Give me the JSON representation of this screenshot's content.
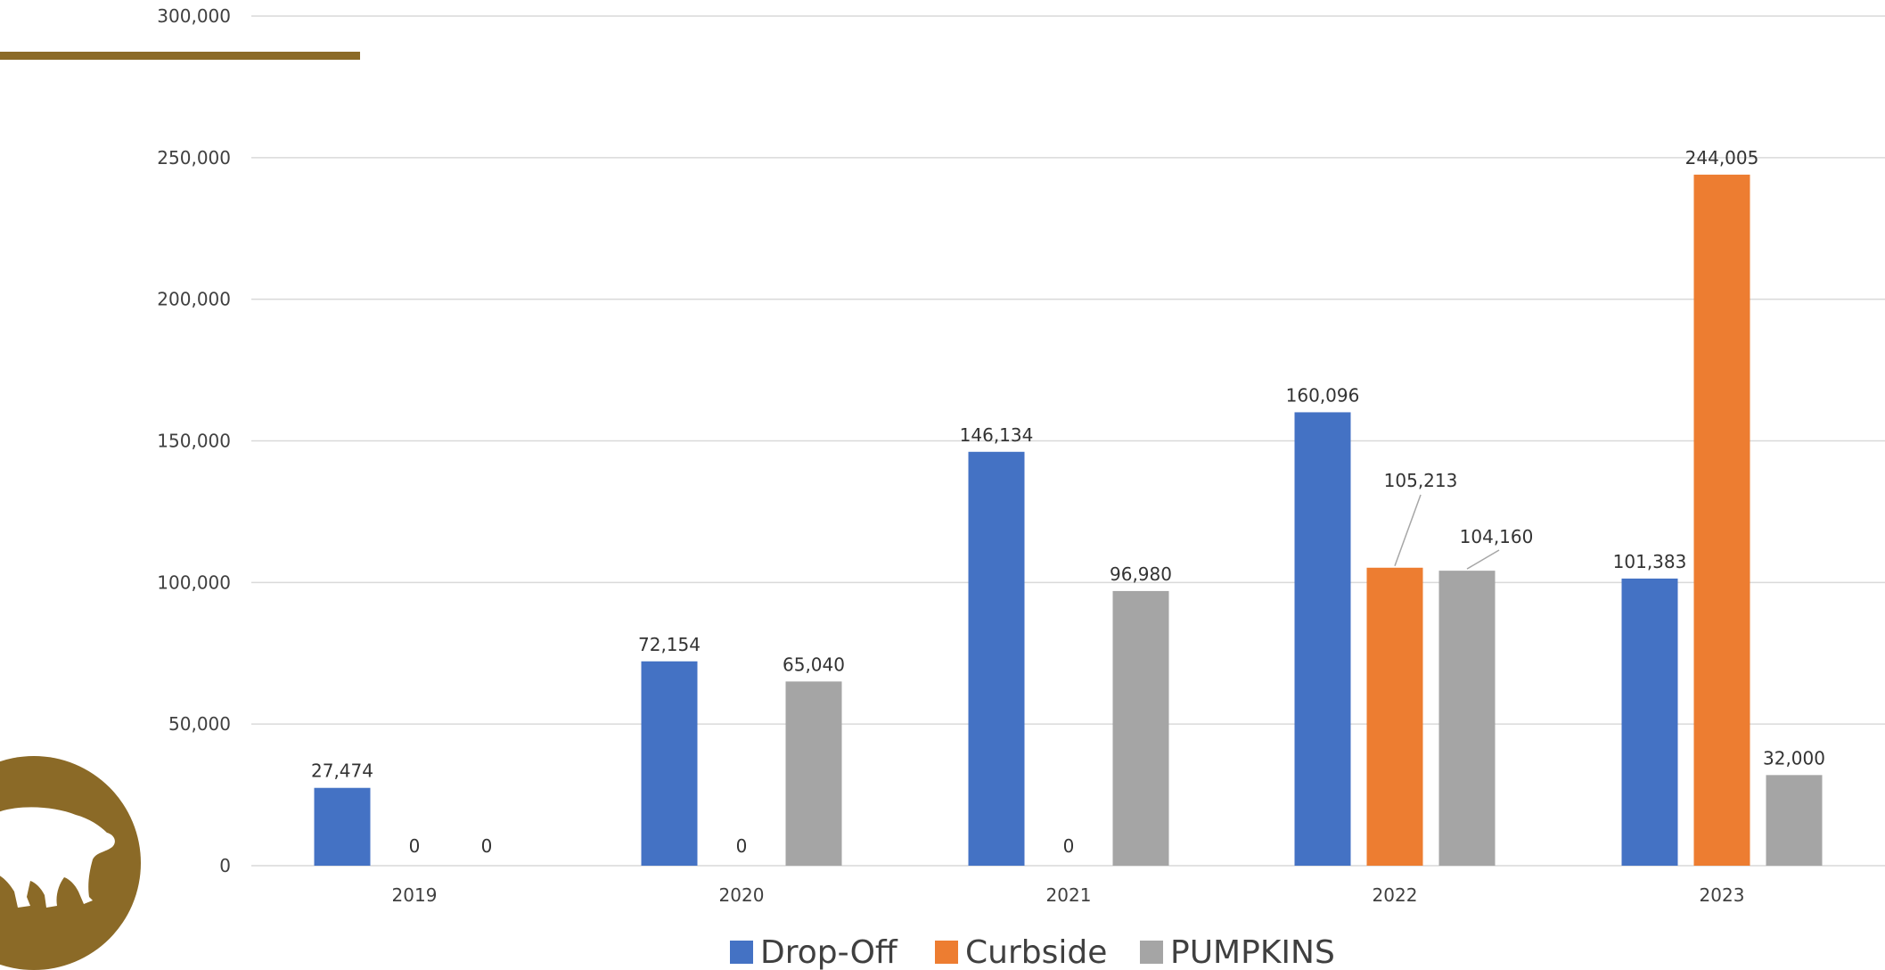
{
  "page": {
    "accent_color": "#8B6A27",
    "logo_color": "#8B6A27",
    "logo_icon": "bear-icon"
  },
  "chart_data": {
    "type": "bar",
    "categories": [
      "2019",
      "2020",
      "2021",
      "2022",
      "2023"
    ],
    "series": [
      {
        "name": "Drop-Off",
        "color": "#4472C4",
        "values": [
          27474,
          72154,
          146134,
          160096,
          101383
        ],
        "labels": [
          "27,474",
          "72,154",
          "146,134",
          "160,096",
          "101,383"
        ]
      },
      {
        "name": "Curbside",
        "color": "#ED7D31",
        "values": [
          0,
          0,
          0,
          105213,
          244005
        ],
        "labels": [
          "0",
          "0",
          "0",
          "105,213",
          "244,005"
        ]
      },
      {
        "name": "PUMPKINS",
        "color": "#A5A5A5",
        "values": [
          0,
          65040,
          96980,
          104160,
          32000
        ],
        "labels": [
          "0",
          "65,040",
          "96,980",
          "104,160",
          "32,000"
        ]
      }
    ],
    "yticks": [
      "0",
      "50,000",
      "100,000",
      "150,000",
      "200,000",
      "250,000",
      "300,000"
    ],
    "ylim": [
      0,
      300000
    ],
    "grid": true,
    "legend_position": "bottom",
    "gridline_color": "#D9D9D9"
  }
}
